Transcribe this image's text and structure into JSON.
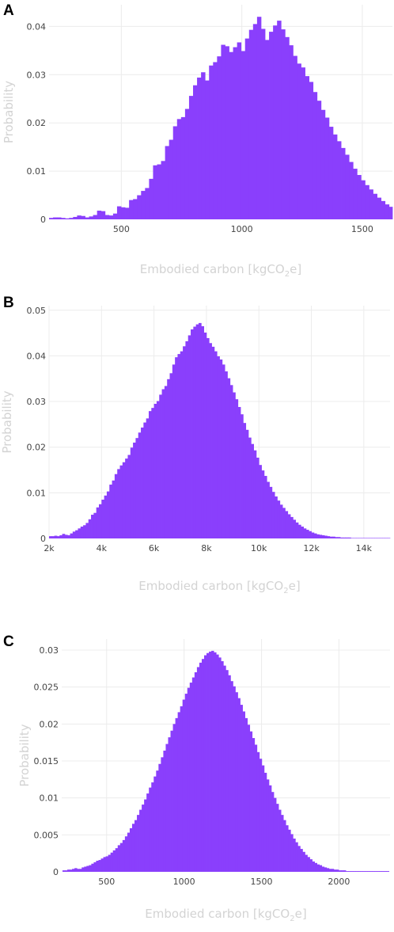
{
  "colors": {
    "bar": "#8a3ffc",
    "grid": "#ececec",
    "tick_text": "#444444",
    "axis_label": "#d3d3d3"
  },
  "chart_data": [
    {
      "panel_label": "A",
      "type": "bar",
      "xlabel": "Embodied carbon [kgCO2e]",
      "ylabel": "Probability",
      "xlim": [
        200,
        1625
      ],
      "ylim": [
        0,
        0.0445
      ],
      "x_ticks": [
        500,
        1000,
        1500
      ],
      "x_tick_labels": [
        "500",
        "1000",
        "1500"
      ],
      "y_ticks": [
        0,
        0.01,
        0.02,
        0.03,
        0.04
      ],
      "y_tick_labels": [
        "0",
        "0.01",
        "0.02",
        "0.03",
        "0.04"
      ],
      "bin_start": 200,
      "bin_width": 16.6,
      "values": [
        0.0003,
        0.0004,
        0.0004,
        0.0003,
        0.0002,
        0.0003,
        0.0005,
        0.0008,
        0.0007,
        0.0004,
        0.0006,
        0.0009,
        0.0018,
        0.0017,
        0.0009,
        0.0008,
        0.0012,
        0.0027,
        0.0025,
        0.0024,
        0.004,
        0.0042,
        0.005,
        0.0059,
        0.0065,
        0.0084,
        0.0112,
        0.0114,
        0.0121,
        0.0152,
        0.0165,
        0.0193,
        0.0208,
        0.0212,
        0.0229,
        0.0256,
        0.0278,
        0.0294,
        0.0305,
        0.0288,
        0.0319,
        0.0326,
        0.0338,
        0.0362,
        0.0359,
        0.0347,
        0.0357,
        0.0367,
        0.0349,
        0.0375,
        0.0393,
        0.0405,
        0.042,
        0.0395,
        0.0372,
        0.0389,
        0.0402,
        0.0412,
        0.0394,
        0.0378,
        0.0361,
        0.0339,
        0.0323,
        0.0315,
        0.0297,
        0.0285,
        0.0264,
        0.0246,
        0.0227,
        0.0211,
        0.0192,
        0.0176,
        0.0162,
        0.0148,
        0.0134,
        0.0119,
        0.0105,
        0.0092,
        0.0081,
        0.0071,
        0.0062,
        0.0053,
        0.0045,
        0.0038,
        0.0031,
        0.0026,
        0.0021,
        0.0017,
        0.0014,
        0.0011,
        0.0009,
        0.0008,
        0.0007,
        0.0005,
        0.0004,
        0.0003,
        0.0003,
        0.0002,
        0.0002,
        0.0002,
        0.0001,
        0.0001,
        0.0001,
        0.0001,
        0.0001
      ]
    },
    {
      "panel_label": "B",
      "type": "bar",
      "xlabel": "Embodied carbon [kgCO2e]",
      "ylabel": "Probability",
      "xlim": [
        2000,
        15000
      ],
      "ylim": [
        0,
        0.051
      ],
      "x_ticks": [
        2000,
        4000,
        6000,
        8000,
        10000,
        12000,
        14000
      ],
      "x_tick_labels": [
        "2k",
        "4k",
        "6k",
        "8k",
        "10k",
        "12k",
        "14k"
      ],
      "y_ticks": [
        0,
        0.01,
        0.02,
        0.03,
        0.04,
        0.05
      ],
      "y_tick_labels": [
        "0",
        "0.01",
        "0.02",
        "0.03",
        "0.04",
        "0.05"
      ],
      "bin_start": 2000,
      "bin_width": 100,
      "values": [
        0.0005,
        0.0005,
        0.0006,
        0.0005,
        0.0007,
        0.001,
        0.0008,
        0.0007,
        0.0011,
        0.0015,
        0.0018,
        0.0022,
        0.0026,
        0.0029,
        0.0034,
        0.0042,
        0.0052,
        0.0056,
        0.0068,
        0.0075,
        0.0085,
        0.0094,
        0.0103,
        0.0118,
        0.0127,
        0.0141,
        0.0152,
        0.016,
        0.0167,
        0.0175,
        0.0183,
        0.0199,
        0.021,
        0.022,
        0.0232,
        0.0243,
        0.0254,
        0.0263,
        0.0279,
        0.0286,
        0.0295,
        0.0301,
        0.0315,
        0.0327,
        0.0334,
        0.0349,
        0.0362,
        0.0381,
        0.0397,
        0.0404,
        0.041,
        0.0421,
        0.0432,
        0.0445,
        0.0458,
        0.0464,
        0.0469,
        0.0472,
        0.0465,
        0.0451,
        0.0439,
        0.0428,
        0.042,
        0.041,
        0.0399,
        0.0392,
        0.0381,
        0.0366,
        0.0351,
        0.0336,
        0.032,
        0.0305,
        0.0288,
        0.0272,
        0.0253,
        0.0238,
        0.0221,
        0.0207,
        0.0193,
        0.0177,
        0.0161,
        0.0149,
        0.0137,
        0.0124,
        0.0113,
        0.0102,
        0.0092,
        0.0083,
        0.0074,
        0.0067,
        0.006,
        0.0053,
        0.0047,
        0.0041,
        0.0035,
        0.003,
        0.0026,
        0.0022,
        0.0019,
        0.0016,
        0.0013,
        0.0011,
        0.0009,
        0.0008,
        0.0007,
        0.0006,
        0.0005,
        0.0004,
        0.0004,
        0.0003,
        0.0003,
        0.0002,
        0.0002,
        0.0002,
        0.0002,
        0.0001,
        0.0001,
        0.0001,
        0.0001,
        0.0001,
        0.0001,
        0.0001,
        0.0001,
        0.0001,
        0.0001,
        0.0001,
        0.0001,
        0.0001,
        0.0001,
        0.0001
      ]
    },
    {
      "panel_label": "C",
      "type": "bar",
      "xlabel": "Embodied carbon [kgCO2e]",
      "ylabel": "Probability",
      "xlim": [
        210,
        2330
      ],
      "ylim": [
        0,
        0.0315
      ],
      "x_ticks": [
        500,
        1000,
        1500,
        2000
      ],
      "x_tick_labels": [
        "500",
        "1000",
        "1500",
        "2000"
      ],
      "y_ticks": [
        0,
        0.005,
        0.01,
        0.015,
        0.02,
        0.025,
        0.03
      ],
      "y_tick_labels": [
        "0",
        "0.005",
        "0.01",
        "0.015",
        "0.02",
        "0.025",
        "0.03"
      ],
      "bin_start": 215,
      "bin_width": 15.5,
      "values": [
        0.0002,
        0.0002,
        0.0003,
        0.0003,
        0.0004,
        0.0005,
        0.0004,
        0.0004,
        0.0006,
        0.0007,
        0.0008,
        0.0009,
        0.0011,
        0.0013,
        0.0015,
        0.0016,
        0.0018,
        0.002,
        0.0021,
        0.0023,
        0.0026,
        0.0029,
        0.0032,
        0.0036,
        0.0039,
        0.0043,
        0.0048,
        0.0053,
        0.0059,
        0.0065,
        0.007,
        0.0077,
        0.0084,
        0.0091,
        0.0098,
        0.0106,
        0.0114,
        0.0121,
        0.0129,
        0.0137,
        0.0146,
        0.0155,
        0.0164,
        0.0173,
        0.0182,
        0.0191,
        0.02,
        0.0208,
        0.0216,
        0.0224,
        0.0233,
        0.0241,
        0.0249,
        0.0256,
        0.0263,
        0.027,
        0.0277,
        0.0283,
        0.0288,
        0.0293,
        0.0296,
        0.0298,
        0.0299,
        0.0297,
        0.0294,
        0.029,
        0.0285,
        0.0279,
        0.0273,
        0.0266,
        0.0258,
        0.0251,
        0.0243,
        0.0235,
        0.0226,
        0.0217,
        0.0208,
        0.0199,
        0.019,
        0.0181,
        0.0172,
        0.0162,
        0.0153,
        0.0144,
        0.0134,
        0.0125,
        0.0117,
        0.0108,
        0.01,
        0.0092,
        0.0084,
        0.0077,
        0.007,
        0.0063,
        0.0057,
        0.0051,
        0.0045,
        0.004,
        0.0035,
        0.0031,
        0.0027,
        0.0023,
        0.002,
        0.0017,
        0.0014,
        0.0012,
        0.001,
        0.0009,
        0.0007,
        0.0006,
        0.0005,
        0.0004,
        0.0004,
        0.0003,
        0.0003,
        0.0002,
        0.0002,
        0.0002,
        0.0001,
        0.0001,
        0.0001,
        0.0001,
        0.0001,
        0.0001,
        0.0001,
        0.0001,
        0.0001,
        0.0001,
        0.0001,
        0.0001,
        0.0001,
        0.0001,
        0.0001,
        0.0001,
        0.0001,
        0.0001
      ]
    }
  ]
}
